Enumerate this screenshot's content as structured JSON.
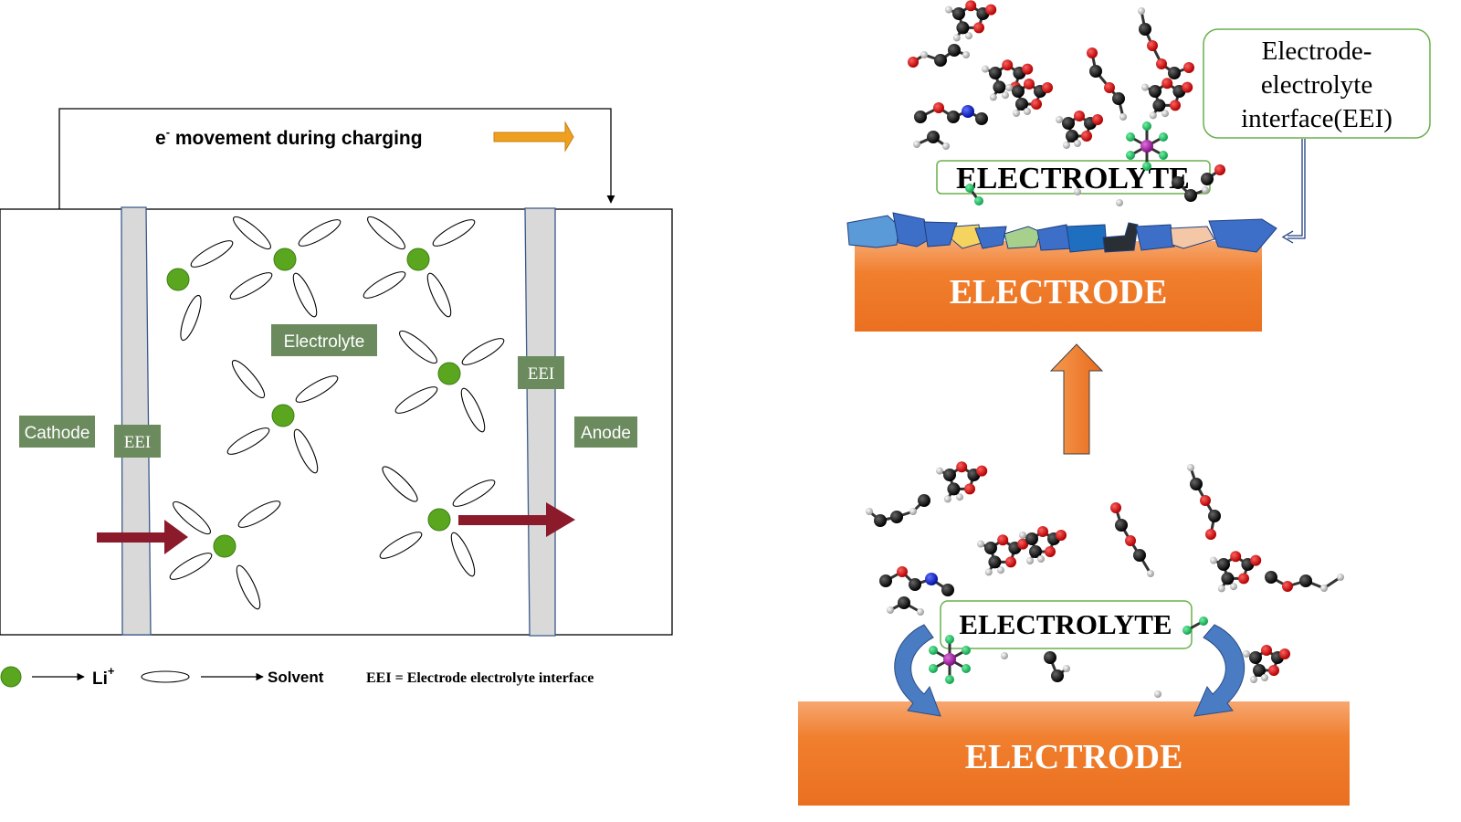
{
  "left": {
    "charging_caption": "movement during charging",
    "electron_symbol": "e",
    "electron_superscript": "-",
    "labels": {
      "cathode": "Cathode",
      "anode": "Anode",
      "electrolyte": "Electrolyte",
      "eei_left": "EEI",
      "eei_right": "EEI"
    },
    "legend": {
      "li_label": "Li",
      "li_superscript": "+",
      "solvent_label": "Solvent",
      "eei_definition": "EEI = Electrode electrolyte interface"
    }
  },
  "right": {
    "top_panel": {
      "electrolyte_label": "ELECTROLYTE",
      "electrode_label": "ELECTRODE",
      "eei_callout": [
        "Electrode-",
        "electrolyte",
        "interface(EEI)"
      ]
    },
    "bottom_panel": {
      "electrolyte_label": "ELECTROLYTE",
      "electrode_label": "ELECTRODE"
    }
  },
  "colors": {
    "li_ion": "#5aa61e",
    "label_box": "#6b8a5e",
    "eei_layer": "#d9d9d9",
    "ion_arrow": "#8b1a2b",
    "electron_arrow": "#f0a020",
    "electrode": "#f07f2e",
    "callout_border": "#6ab04c",
    "curved_arrow": "#4a7cc4"
  }
}
